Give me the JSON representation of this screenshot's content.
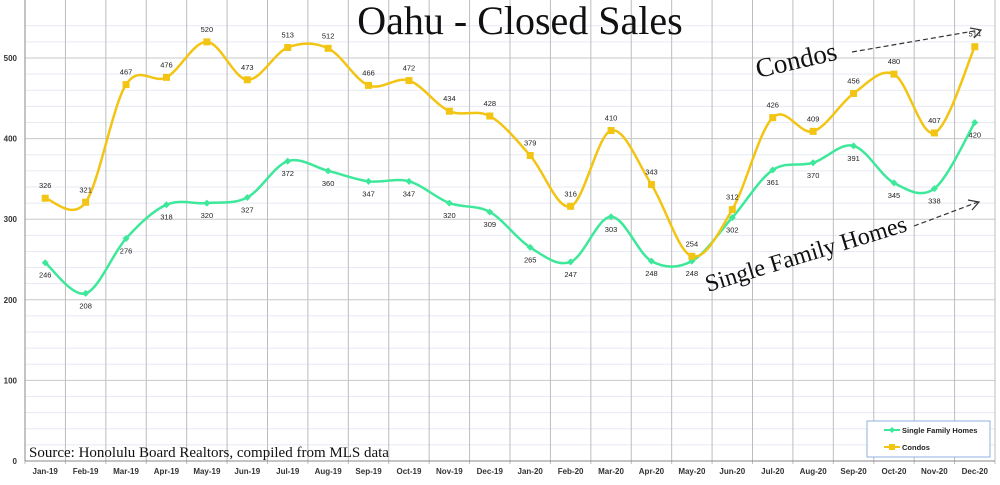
{
  "chart_data": {
    "type": "line",
    "title": "Oahu - Closed Sales",
    "source": "Source: Honolulu Board Realtors, compiled from MLS data",
    "xlabel": "",
    "ylabel": "",
    "ylim": [
      0,
      550
    ],
    "yticks": [
      0,
      100,
      200,
      300,
      400,
      500
    ],
    "grid": true,
    "legend_position": "bottom-right",
    "categories": [
      "Jan-19",
      "Feb-19",
      "Mar-19",
      "Apr-19",
      "May-19",
      "Jun-19",
      "Jul-19",
      "Aug-19",
      "Sep-19",
      "Oct-19",
      "Nov-19",
      "Dec-19",
      "Jan-20",
      "Feb-20",
      "Mar-20",
      "Apr-20",
      "May-20",
      "Jun-20",
      "Jul-20",
      "Aug-20",
      "Sep-20",
      "Oct-20",
      "Nov-20",
      "Dec-20"
    ],
    "series": [
      {
        "name": "Single Family Homes",
        "color": "#3ee89a",
        "marker": "diamond",
        "values": [
          246,
          208,
          276,
          318,
          320,
          327,
          372,
          360,
          347,
          347,
          320,
          309,
          265,
          247,
          303,
          248,
          248,
          302,
          361,
          370,
          391,
          345,
          338,
          420
        ]
      },
      {
        "name": "Condos",
        "color": "#f2c414",
        "marker": "square",
        "values": [
          326,
          321,
          467,
          476,
          520,
          473,
          513,
          512,
          466,
          472,
          434,
          428,
          379,
          316,
          410,
          343,
          254,
          312,
          426,
          409,
          456,
          480,
          407,
          514
        ]
      }
    ],
    "annotations": [
      "Condos",
      "Single Family Homes"
    ]
  }
}
